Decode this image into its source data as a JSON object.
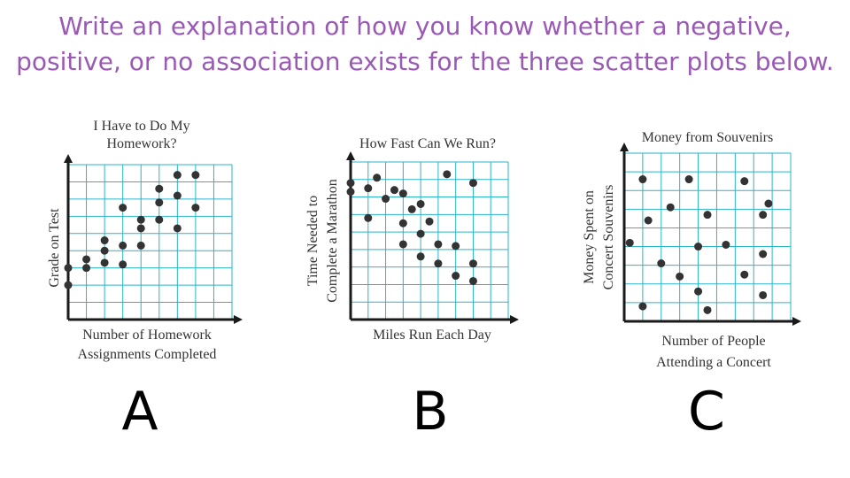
{
  "prompt": {
    "line1": "Write an explanation of  how you know whether a negative,",
    "line2": "positive, or no association exists for the three scatter plots below."
  },
  "colors": {
    "prompt": "#9b59b6",
    "grid": "#2ab4cc",
    "point": "#333333"
  },
  "chart_data": [
    {
      "type": "scatter",
      "letter": "A",
      "title_lines": [
        "I Have to Do My",
        "Homework?"
      ],
      "xlabel_lines": [
        "Number of Homework",
        "Assignments Completed"
      ],
      "ylabel_lines": [
        "Grade on Test"
      ],
      "grid": true,
      "xlim": [
        0,
        9
      ],
      "ylim": [
        0,
        9
      ],
      "points": [
        [
          0,
          3
        ],
        [
          0,
          2
        ],
        [
          1,
          3
        ],
        [
          1,
          3.5
        ],
        [
          2,
          3.3
        ],
        [
          2,
          4
        ],
        [
          2,
          4.6
        ],
        [
          3,
          3.2
        ],
        [
          3,
          4.3
        ],
        [
          3,
          6.5
        ],
        [
          4,
          4.3
        ],
        [
          4,
          5.3
        ],
        [
          4,
          5.8
        ],
        [
          5,
          5.8
        ],
        [
          5,
          6.8
        ],
        [
          5,
          7.6
        ],
        [
          6,
          5.3
        ],
        [
          6,
          7.2
        ],
        [
          6,
          8.4
        ],
        [
          7,
          8.4
        ],
        [
          7,
          6.5
        ]
      ]
    },
    {
      "type": "scatter",
      "letter": "B",
      "title_lines": [
        "How Fast Can We Run?"
      ],
      "xlabel_lines": [
        "Miles Run Each Day"
      ],
      "ylabel_lines": [
        "Time Needed to",
        "Complete a Marathon"
      ],
      "grid": true,
      "xlim": [
        0,
        9
      ],
      "ylim": [
        0,
        9
      ],
      "points": [
        [
          0,
          7.3
        ],
        [
          0,
          7.8
        ],
        [
          1,
          7.5
        ],
        [
          1,
          5.8
        ],
        [
          1.5,
          8.1
        ],
        [
          2,
          6.9
        ],
        [
          2.5,
          7.4
        ],
        [
          3,
          5.5
        ],
        [
          3,
          4.3
        ],
        [
          3,
          7.2
        ],
        [
          3.5,
          6.3
        ],
        [
          4,
          4.9
        ],
        [
          4,
          3.6
        ],
        [
          4,
          6.6
        ],
        [
          4.5,
          5.6
        ],
        [
          5,
          4.3
        ],
        [
          5,
          3.2
        ],
        [
          5.5,
          8.3
        ],
        [
          6,
          4.2
        ],
        [
          6,
          2.5
        ],
        [
          7,
          3.2
        ],
        [
          7,
          2.2
        ],
        [
          7,
          7.8
        ]
      ]
    },
    {
      "type": "scatter",
      "letter": "C",
      "title_lines": [
        "Money from Souvenirs"
      ],
      "xlabel_lines": [
        "Number of People",
        "Attending a Concert"
      ],
      "ylabel_lines": [
        "Money Spent on",
        "Concert Souvenirs"
      ],
      "grid": true,
      "xlim": [
        0,
        9
      ],
      "ylim": [
        0,
        9
      ],
      "points": [
        [
          0.3,
          4.2
        ],
        [
          1,
          0.8
        ],
        [
          1,
          7.6
        ],
        [
          1.3,
          5.4
        ],
        [
          2,
          3.1
        ],
        [
          2.5,
          6.1
        ],
        [
          3,
          2.4
        ],
        [
          3.5,
          7.6
        ],
        [
          4,
          1.6
        ],
        [
          4,
          4
        ],
        [
          4.5,
          5.7
        ],
        [
          4.5,
          0.6
        ],
        [
          5.5,
          4.1
        ],
        [
          6.5,
          2.5
        ],
        [
          6.5,
          7.5
        ],
        [
          7.5,
          1.4
        ],
        [
          7.5,
          3.6
        ],
        [
          7.5,
          5.7
        ],
        [
          7.8,
          6.3
        ]
      ]
    }
  ]
}
